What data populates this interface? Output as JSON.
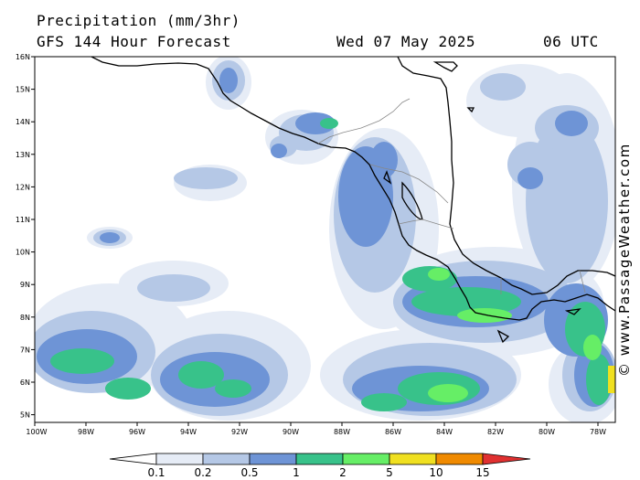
{
  "header": {
    "title": "Precipitation (mm/3hr)",
    "subtitle": "GFS 144 Hour Forecast",
    "valid_date": "Wed 07 May 2025",
    "valid_time": "06 UTC"
  },
  "credit": "© www.PassageWeather.com",
  "map": {
    "lat_labels": [
      "16N",
      "15N",
      "14N",
      "13N",
      "12N",
      "11N",
      "10N",
      "9N",
      "8N",
      "7N",
      "6N",
      "5N"
    ],
    "lon_labels": [
      "100W",
      "98W",
      "96W",
      "94W",
      "92W",
      "90W",
      "88W",
      "86W",
      "84W",
      "82W",
      "80W",
      "78W"
    ]
  },
  "legend": {
    "labels": [
      "0.1",
      "0.2",
      "0.5",
      "1",
      "2",
      "5",
      "10",
      "15"
    ],
    "colors": [
      "#ffffff",
      "#e6ecf6",
      "#b5c8e6",
      "#6e94d6",
      "#38c28a",
      "#66ee66",
      "#f0e020",
      "#f08a00",
      "#e03030"
    ]
  }
}
